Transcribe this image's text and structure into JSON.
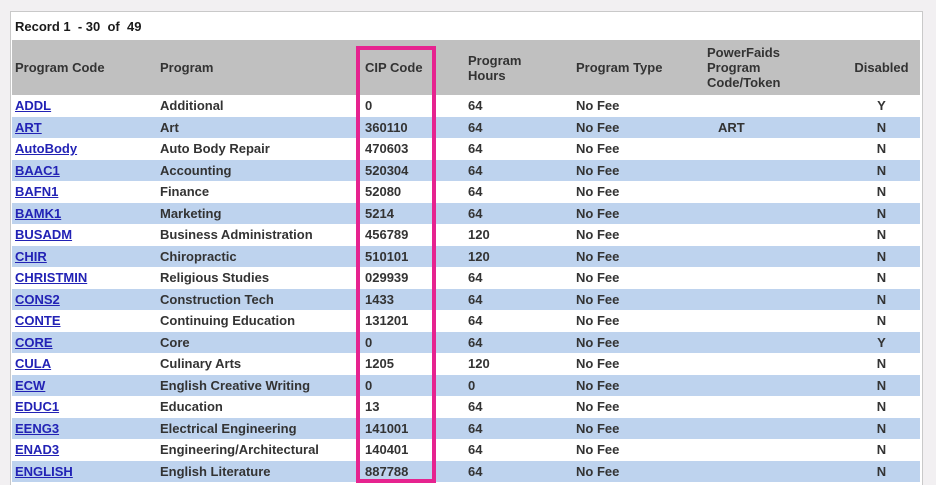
{
  "record_summary": "Record 1  - 30  of  49",
  "colors": {
    "page_background": "#f2f0f2",
    "panel_border": "#c9c9c9",
    "header_background": "#c0c0c0",
    "row_stripe_blue": "#bed3ee",
    "link_blue": "#2222b5",
    "body_text": "#333333",
    "highlight_pink": "#e6238f"
  },
  "highlight": {
    "target_column": "cip_code",
    "description": "pink annotation box around CIP Code column"
  },
  "table": {
    "columns": [
      {
        "key": "program_code",
        "label": "Program Code"
      },
      {
        "key": "program",
        "label": "Program"
      },
      {
        "key": "cip_code",
        "label": "CIP Code"
      },
      {
        "key": "program_hours",
        "label": "Program\nHours"
      },
      {
        "key": "program_type",
        "label": "Program Type"
      },
      {
        "key": "powerfaids_token",
        "label": "PowerFaids\nProgram\nCode/Token"
      },
      {
        "key": "disabled",
        "label": "Disabled"
      }
    ],
    "rows": [
      {
        "program_code": "ADDL",
        "program": "Additional",
        "cip_code": "0",
        "program_hours": "64",
        "program_type": "No Fee",
        "powerfaids_token": "",
        "disabled": "Y"
      },
      {
        "program_code": "ART",
        "program": "Art",
        "cip_code": "360110",
        "program_hours": "64",
        "program_type": "No Fee",
        "powerfaids_token": "ART",
        "disabled": "N"
      },
      {
        "program_code": "AutoBody",
        "program": "Auto Body Repair",
        "cip_code": "470603",
        "program_hours": "64",
        "program_type": "No Fee",
        "powerfaids_token": "",
        "disabled": "N"
      },
      {
        "program_code": "BAAC1",
        "program": "Accounting",
        "cip_code": "520304",
        "program_hours": "64",
        "program_type": "No Fee",
        "powerfaids_token": "",
        "disabled": "N"
      },
      {
        "program_code": "BAFN1",
        "program": "Finance",
        "cip_code": "52080",
        "program_hours": "64",
        "program_type": "No Fee",
        "powerfaids_token": "",
        "disabled": "N"
      },
      {
        "program_code": "BAMK1",
        "program": "Marketing",
        "cip_code": "5214",
        "program_hours": "64",
        "program_type": "No Fee",
        "powerfaids_token": "",
        "disabled": "N"
      },
      {
        "program_code": "BUSADM",
        "program": "Business Administration",
        "cip_code": "456789",
        "program_hours": "120",
        "program_type": "No Fee",
        "powerfaids_token": "",
        "disabled": "N"
      },
      {
        "program_code": "CHIR",
        "program": "Chiropractic",
        "cip_code": "510101",
        "program_hours": "120",
        "program_type": "No Fee",
        "powerfaids_token": "",
        "disabled": "N"
      },
      {
        "program_code": "CHRISTMIN",
        "program": "Religious Studies",
        "cip_code": "029939",
        "program_hours": "64",
        "program_type": "No Fee",
        "powerfaids_token": "",
        "disabled": "N"
      },
      {
        "program_code": "CONS2",
        "program": "Construction Tech",
        "cip_code": "1433",
        "program_hours": "64",
        "program_type": "No Fee",
        "powerfaids_token": "",
        "disabled": "N"
      },
      {
        "program_code": "CONTE",
        "program": "Continuing Education",
        "cip_code": "131201",
        "program_hours": "64",
        "program_type": "No Fee",
        "powerfaids_token": "",
        "disabled": "N"
      },
      {
        "program_code": "CORE",
        "program": "Core",
        "cip_code": "0",
        "program_hours": "64",
        "program_type": "No Fee",
        "powerfaids_token": "",
        "disabled": "Y"
      },
      {
        "program_code": "CULA",
        "program": "Culinary Arts",
        "cip_code": "1205",
        "program_hours": "120",
        "program_type": "No Fee",
        "powerfaids_token": "",
        "disabled": "N"
      },
      {
        "program_code": "ECW",
        "program": "English Creative Writing",
        "cip_code": "0",
        "program_hours": "0",
        "program_type": "No Fee",
        "powerfaids_token": "",
        "disabled": "N"
      },
      {
        "program_code": "EDUC1",
        "program": "Education",
        "cip_code": "13",
        "program_hours": "64",
        "program_type": "No Fee",
        "powerfaids_token": "",
        "disabled": "N"
      },
      {
        "program_code": "EENG3",
        "program": "Electrical Engineering",
        "cip_code": "141001",
        "program_hours": "64",
        "program_type": "No Fee",
        "powerfaids_token": "",
        "disabled": "N"
      },
      {
        "program_code": "ENAD3",
        "program": "Engineering/Architectural",
        "cip_code": "140401",
        "program_hours": "64",
        "program_type": "No Fee",
        "powerfaids_token": "",
        "disabled": "N"
      },
      {
        "program_code": "ENGLISH",
        "program": "English Literature",
        "cip_code": "887788",
        "program_hours": "64",
        "program_type": "No Fee",
        "powerfaids_token": "",
        "disabled": "N"
      }
    ]
  }
}
